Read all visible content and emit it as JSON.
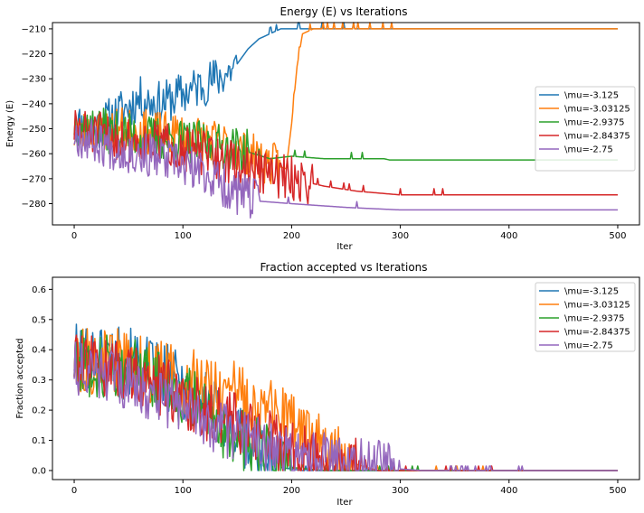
{
  "chart_data": [
    {
      "type": "line",
      "title": "Energy (E) vs Iterations",
      "xlabel": "Iter",
      "ylabel": "Energy (E)",
      "xlim": [
        -20,
        520
      ],
      "ylim": [
        -288.5,
        -207.5
      ],
      "xticks": [
        0,
        100,
        200,
        300,
        400,
        500
      ],
      "yticks": [
        -280,
        -270,
        -260,
        -250,
        -240,
        -230,
        -220,
        -210
      ],
      "grid": false,
      "legend_position": "right",
      "series": [
        {
          "name": "\\mu=-3.125",
          "color": "#1f77b4",
          "keypoints": [
            [
              0,
              -248
            ],
            [
              20,
              -250
            ],
            [
              40,
              -244
            ],
            [
              60,
              -238
            ],
            [
              80,
              -240
            ],
            [
              100,
              -236
            ],
            [
              120,
              -232
            ],
            [
              140,
              -228
            ],
            [
              150,
              -224
            ],
            [
              160,
              -218
            ],
            [
              170,
              -214
            ],
            [
              180,
              -212
            ],
            [
              190,
              -210
            ],
            [
              200,
              -210
            ],
            [
              500,
              -210
            ]
          ],
          "noise": 9,
          "noise_end": 150,
          "seed": 11
        },
        {
          "name": "\\mu=-3.03125",
          "color": "#ff7f0e",
          "keypoints": [
            [
              0,
              -252
            ],
            [
              40,
              -250
            ],
            [
              80,
              -252
            ],
            [
              120,
              -254
            ],
            [
              150,
              -258
            ],
            [
              180,
              -264
            ],
            [
              195,
              -266
            ],
            [
              200,
              -248
            ],
            [
              205,
              -225
            ],
            [
              210,
              -212
            ],
            [
              220,
              -210
            ],
            [
              500,
              -210
            ]
          ],
          "noise": 9,
          "noise_end": 190,
          "seed": 23
        },
        {
          "name": "\\mu=-2.9375",
          "color": "#2ca02c",
          "keypoints": [
            [
              0,
              -248
            ],
            [
              40,
              -252
            ],
            [
              80,
              -254
            ],
            [
              120,
              -256
            ],
            [
              150,
              -258
            ],
            [
              180,
              -262
            ],
            [
              200,
              -261
            ],
            [
              230,
              -262
            ],
            [
              260,
              -262
            ],
            [
              285,
              -262
            ],
            [
              290,
              -262.5
            ],
            [
              500,
              -262.5
            ]
          ],
          "noise": 9,
          "noise_end": 160,
          "seed": 37
        },
        {
          "name": "\\mu=-2.84375",
          "color": "#d62728",
          "keypoints": [
            [
              0,
              -250
            ],
            [
              40,
              -254
            ],
            [
              80,
              -256
            ],
            [
              120,
              -260
            ],
            [
              160,
              -266
            ],
            [
              200,
              -270
            ],
            [
              230,
              -273
            ],
            [
              260,
              -275
            ],
            [
              300,
              -276.5
            ],
            [
              500,
              -276.5
            ]
          ],
          "noise": 9,
          "noise_end": 220,
          "seed": 51
        },
        {
          "name": "\\mu=-2.75",
          "color": "#9467bd",
          "keypoints": [
            [
              0,
              -252
            ],
            [
              40,
              -258
            ],
            [
              80,
              -262
            ],
            [
              120,
              -268
            ],
            [
              150,
              -276
            ],
            [
              170,
              -279
            ],
            [
              200,
              -280
            ],
            [
              250,
              -281.5
            ],
            [
              300,
              -282.5
            ],
            [
              500,
              -282.5
            ]
          ],
          "noise": 9,
          "noise_end": 170,
          "seed": 67
        }
      ]
    },
    {
      "type": "line",
      "title": "Fraction accepted vs Iterations",
      "xlabel": "Iter",
      "ylabel": "Fraction accepted",
      "xlim": [
        -20,
        520
      ],
      "ylim": [
        -0.03,
        0.64
      ],
      "xticks": [
        0,
        100,
        200,
        300,
        400,
        500
      ],
      "yticks": [
        0.0,
        0.1,
        0.2,
        0.3,
        0.4,
        0.5,
        0.6
      ],
      "grid": false,
      "legend_position": "top-right",
      "series": [
        {
          "name": "\\mu=-3.125",
          "color": "#1f77b4",
          "keypoints": [
            [
              0,
              0.38
            ],
            [
              40,
              0.38
            ],
            [
              80,
              0.32
            ],
            [
              110,
              0.26
            ],
            [
              130,
              0.2
            ],
            [
              150,
              0.12
            ],
            [
              170,
              0.05
            ],
            [
              190,
              0.01
            ],
            [
              210,
              0.0
            ],
            [
              500,
              0.0
            ]
          ],
          "noise": 0.11,
          "noise_end": 190,
          "seed": 101
        },
        {
          "name": "\\mu=-3.03125",
          "color": "#ff7f0e",
          "keypoints": [
            [
              0,
              0.36
            ],
            [
              40,
              0.36
            ],
            [
              80,
              0.32
            ],
            [
              120,
              0.28
            ],
            [
              160,
              0.24
            ],
            [
              200,
              0.16
            ],
            [
              230,
              0.08
            ],
            [
              260,
              0.02
            ],
            [
              280,
              0.0
            ],
            [
              500,
              0.0
            ]
          ],
          "noise": 0.11,
          "noise_end": 260,
          "seed": 113
        },
        {
          "name": "\\mu=-2.9375",
          "color": "#2ca02c",
          "keypoints": [
            [
              0,
              0.36
            ],
            [
              40,
              0.34
            ],
            [
              80,
              0.3
            ],
            [
              120,
              0.2
            ],
            [
              150,
              0.1
            ],
            [
              180,
              0.04
            ],
            [
              200,
              0.01
            ],
            [
              230,
              0.0
            ],
            [
              500,
              0.0
            ]
          ],
          "noise": 0.11,
          "noise_end": 200,
          "seed": 127
        },
        {
          "name": "\\mu=-2.84375",
          "color": "#d62728",
          "keypoints": [
            [
              0,
              0.35
            ],
            [
              40,
              0.34
            ],
            [
              80,
              0.28
            ],
            [
              120,
              0.2
            ],
            [
              160,
              0.14
            ],
            [
              200,
              0.06
            ],
            [
              240,
              0.02
            ],
            [
              280,
              0.0
            ],
            [
              500,
              0.0
            ]
          ],
          "noise": 0.1,
          "noise_end": 270,
          "seed": 139
        },
        {
          "name": "\\mu=-2.75",
          "color": "#9467bd",
          "keypoints": [
            [
              0,
              0.34
            ],
            [
              40,
              0.3
            ],
            [
              80,
              0.24
            ],
            [
              120,
              0.16
            ],
            [
              160,
              0.1
            ],
            [
              200,
              0.05
            ],
            [
              240,
              0.03
            ],
            [
              280,
              0.01
            ],
            [
              320,
              0.0
            ],
            [
              500,
              0.0
            ]
          ],
          "noise": 0.09,
          "noise_end": 300,
          "seed": 151
        }
      ]
    }
  ]
}
